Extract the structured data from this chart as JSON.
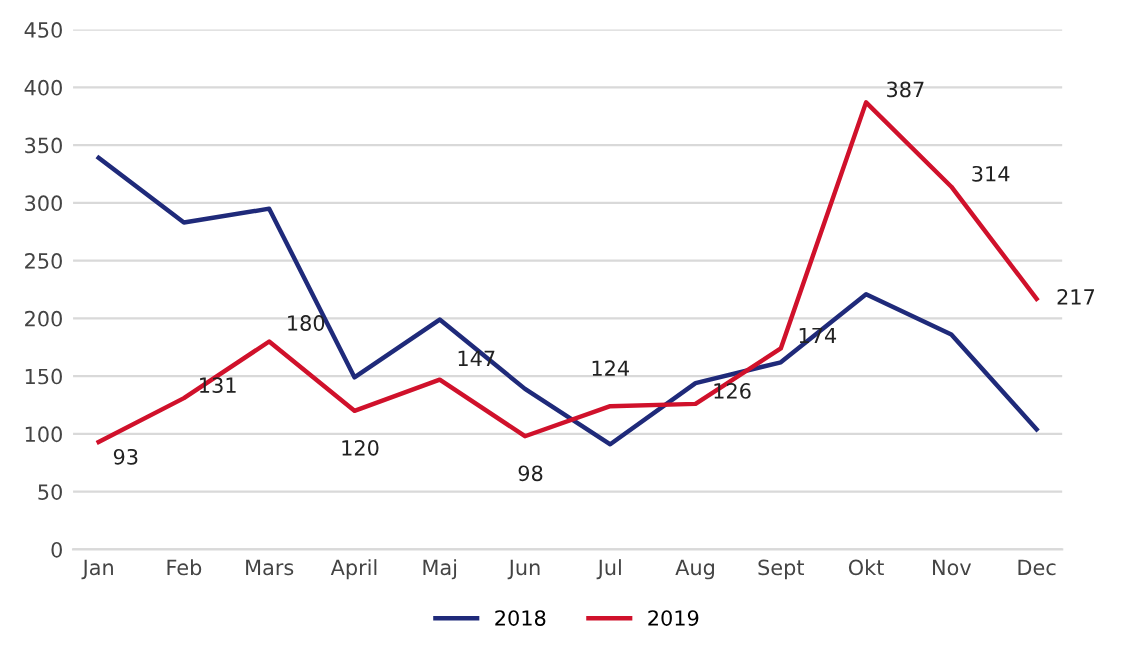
{
  "chart_data": {
    "type": "line",
    "categories": [
      "Jan",
      "Feb",
      "Mars",
      "April",
      "Maj",
      "Jun",
      "Jul",
      "Aug",
      "Sept",
      "Okt",
      "Nov",
      "Dec"
    ],
    "series": [
      {
        "name": "2018",
        "color": "#1f2a7a",
        "values": [
          339,
          283,
          295,
          149,
          199,
          139,
          91,
          144,
          162,
          221,
          186,
          104
        ]
      },
      {
        "name": "2019",
        "color": "#d0112b",
        "values": [
          93,
          131,
          180,
          120,
          147,
          98,
          124,
          126,
          174,
          387,
          314,
          217
        ],
        "value_labels": [
          "93",
          "131",
          "180",
          "120",
          "147",
          "98",
          "124",
          "126",
          "174",
          "387",
          "314",
          "217"
        ]
      }
    ],
    "ylim": [
      0,
      450
    ],
    "yticks": [
      0,
      50,
      100,
      150,
      200,
      250,
      300,
      350,
      400,
      450
    ],
    "grid": "y",
    "legend": "bottom",
    "marker": "none",
    "line_style": "solid"
  }
}
